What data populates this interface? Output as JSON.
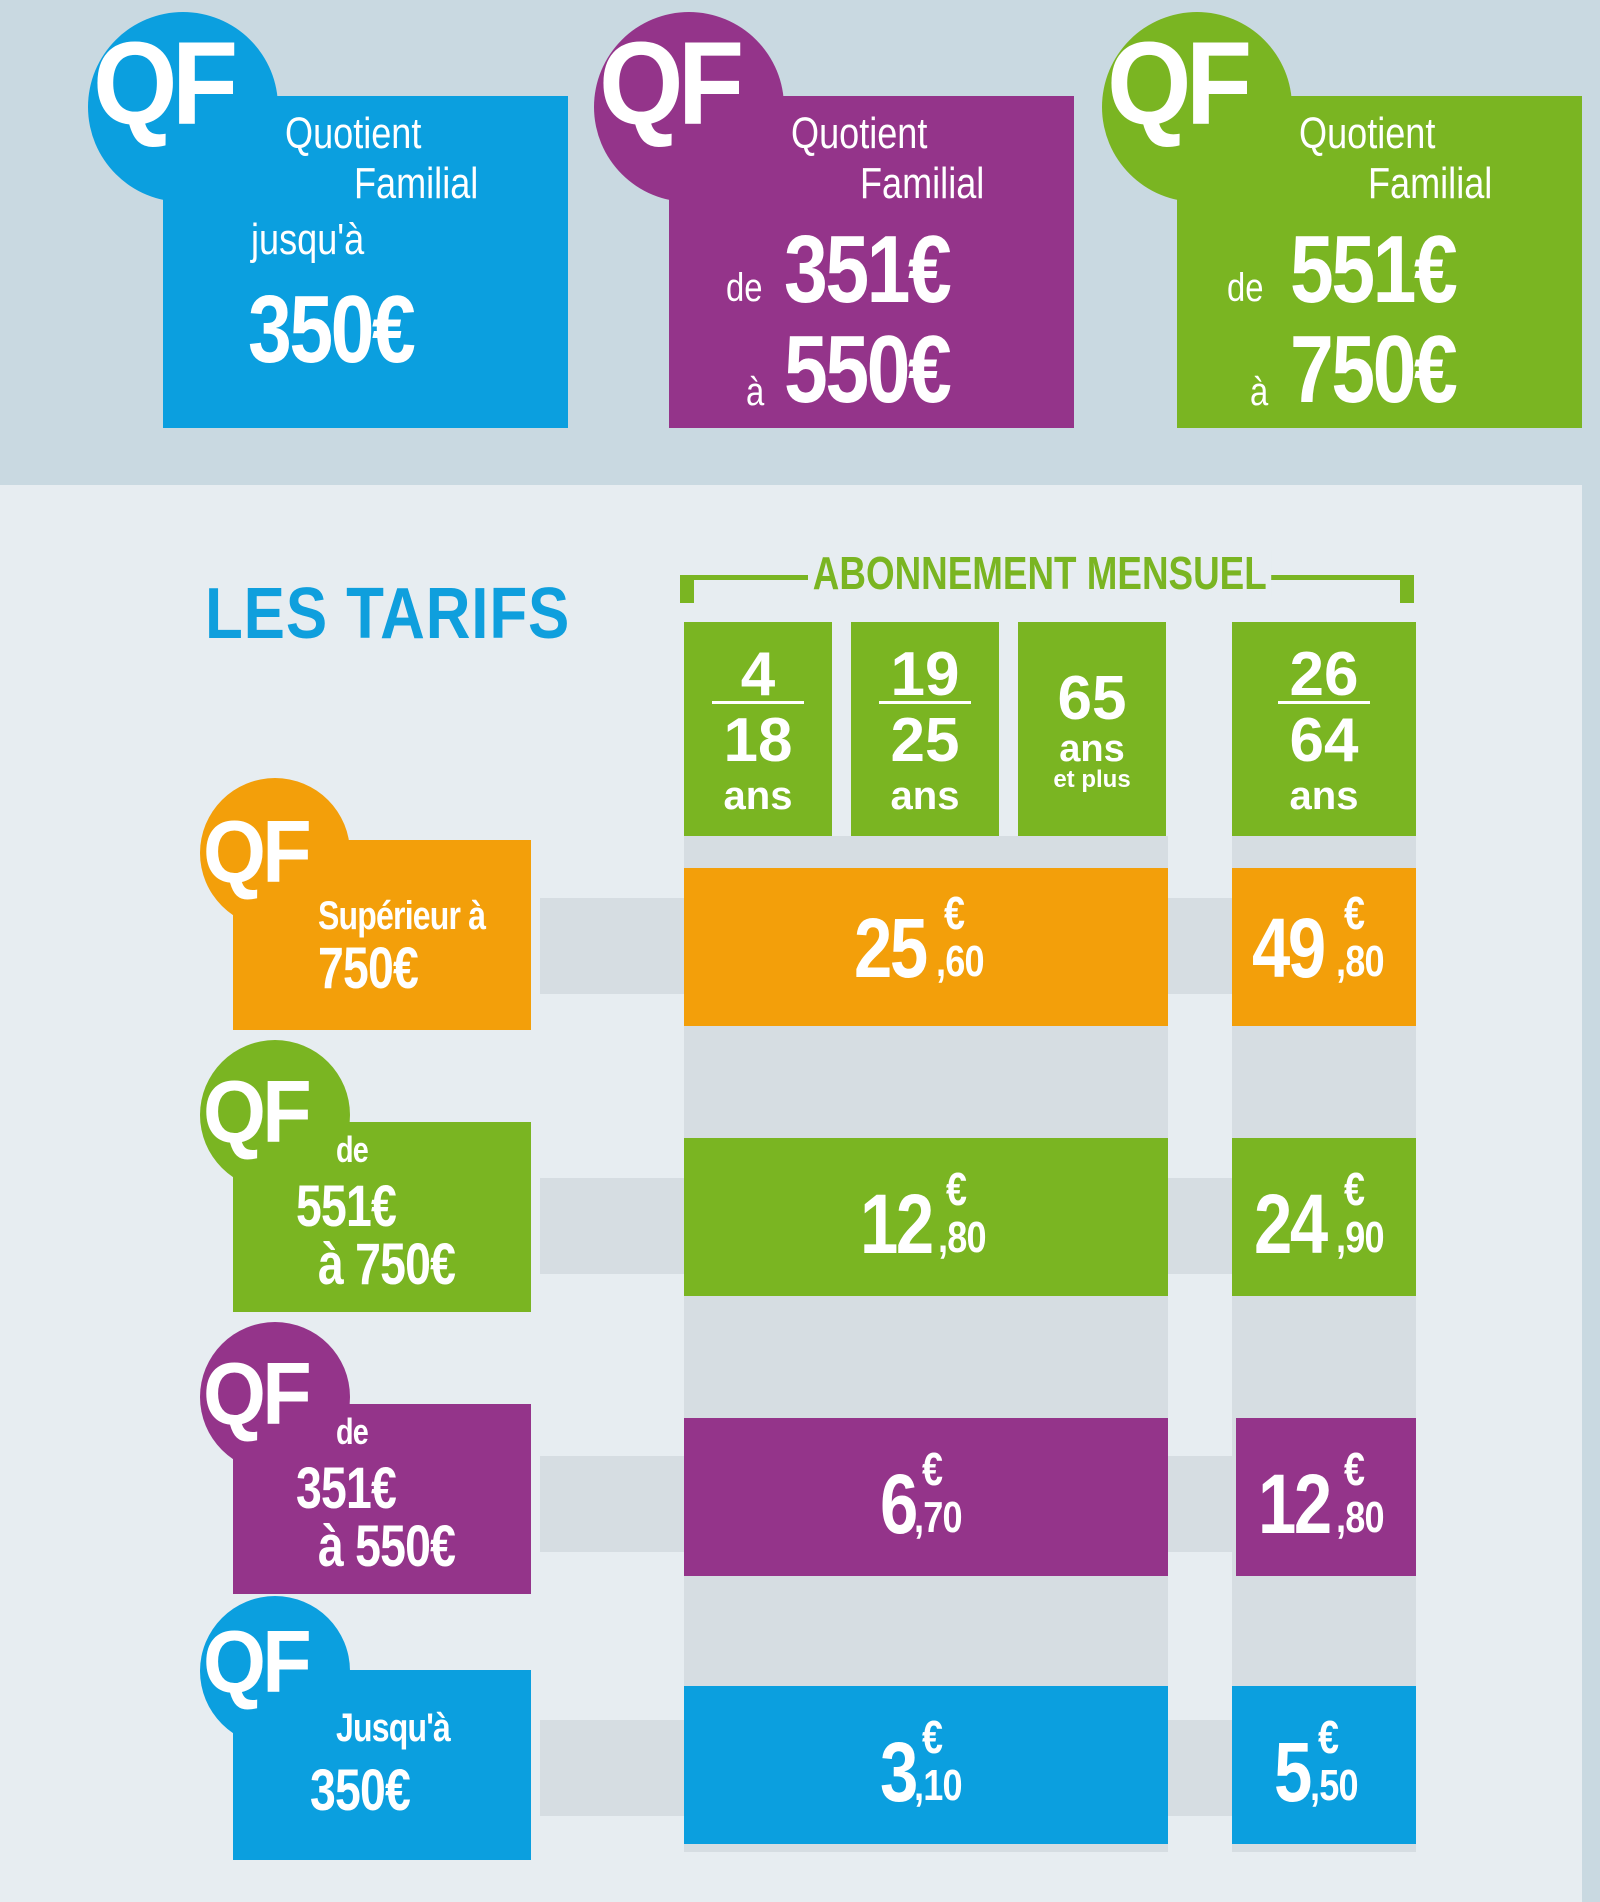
{
  "colors": {
    "blue": "#0b9fdf",
    "purple": "#94348a",
    "green": "#7ab522",
    "orange": "#f39f0a",
    "title_blue": "#0f9fdd",
    "page_bg": "#c9d9e1",
    "panel_bg": "#e7edf1",
    "table_grey": "#d6dde2"
  },
  "top_cards": [
    {
      "qf": "QF",
      "line1": "Quotient",
      "line2": "Familial",
      "prefix": "jusqu'à",
      "amount": "350€",
      "color": "blue"
    },
    {
      "qf": "QF",
      "line1": "Quotient",
      "line2": "Familial",
      "from_word": "de",
      "from_amount": "351€",
      "to_word": "à",
      "to_amount": "550€",
      "color": "purple"
    },
    {
      "qf": "QF",
      "line1": "Quotient",
      "line2": "Familial",
      "from_word": "de",
      "from_amount": "551€",
      "to_word": "à",
      "to_amount": "750€",
      "color": "green"
    }
  ],
  "tarifs": {
    "title": "LES TARIFS",
    "subscription_label": "ABONNEMENT MENSUEL",
    "age_groups": [
      {
        "top": "4",
        "bottom": "18",
        "unit": "ans"
      },
      {
        "top": "19",
        "bottom": "25",
        "unit": "ans"
      },
      {
        "top": "65",
        "unit": "ans",
        "extra": "et plus"
      },
      {
        "top": "26",
        "bottom": "64",
        "unit": "ans"
      }
    ],
    "rows": [
      {
        "qf": "QF",
        "line1": "Supérieur à",
        "line2": "750€",
        "color": "orange",
        "price_young": {
          "int": "25",
          "dec": ",60",
          "cur": "€"
        },
        "price_adult": {
          "int": "49",
          "dec": ",80",
          "cur": "€"
        }
      },
      {
        "qf": "QF",
        "line0": "de",
        "line1": "551€",
        "line2": "à 750€",
        "color": "green",
        "price_young": {
          "int": "12",
          "dec": ",80",
          "cur": "€"
        },
        "price_adult": {
          "int": "24",
          "dec": ",90",
          "cur": "€"
        }
      },
      {
        "qf": "QF",
        "line0": "de",
        "line1": "351€",
        "line2": "à 550€",
        "color": "purple",
        "price_young": {
          "int": "6",
          "dec": ",70",
          "cur": "€"
        },
        "price_adult": {
          "int": "12",
          "dec": ",80",
          "cur": "€"
        }
      },
      {
        "qf": "QF",
        "line1": "Jusqu'à",
        "line2": "350€",
        "color": "blue",
        "price_young": {
          "int": "3",
          "dec": ",10",
          "cur": "€"
        },
        "price_adult": {
          "int": "5",
          "dec": ",50",
          "cur": "€"
        }
      }
    ]
  }
}
